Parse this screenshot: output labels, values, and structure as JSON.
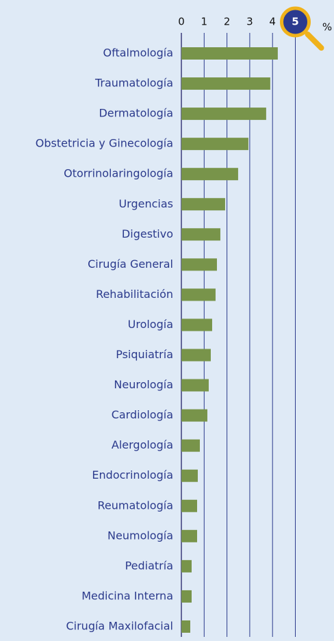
{
  "chart_data": {
    "type": "barh",
    "xlabel": "%",
    "categories": [
      "Oftalmología",
      "Traumatología",
      "Dermatología",
      "Obstetricia y Ginecología",
      "Otorrinolaringología",
      "Urgencias",
      "Digestivo",
      "Cirugía General",
      "Rehabilitación",
      "Urología",
      "Psiquiatría",
      "Neurología",
      "Cardiología",
      "Alergología",
      "Endocrinología",
      "Reumatología",
      "Neumología",
      "Pediatría",
      "Medicina Interna",
      "Cirugía Maxilofacial"
    ],
    "values": [
      4.23,
      3.9,
      3.72,
      2.94,
      2.49,
      1.92,
      1.71,
      1.56,
      1.5,
      1.35,
      1.29,
      1.2,
      1.14,
      0.81,
      0.72,
      0.69,
      0.69,
      0.45,
      0.45,
      0.39
    ],
    "color": "#78944a",
    "xlim": [
      0,
      5
    ],
    "xticks": [
      0,
      1,
      2,
      3,
      4,
      5
    ],
    "grid": true
  }
}
